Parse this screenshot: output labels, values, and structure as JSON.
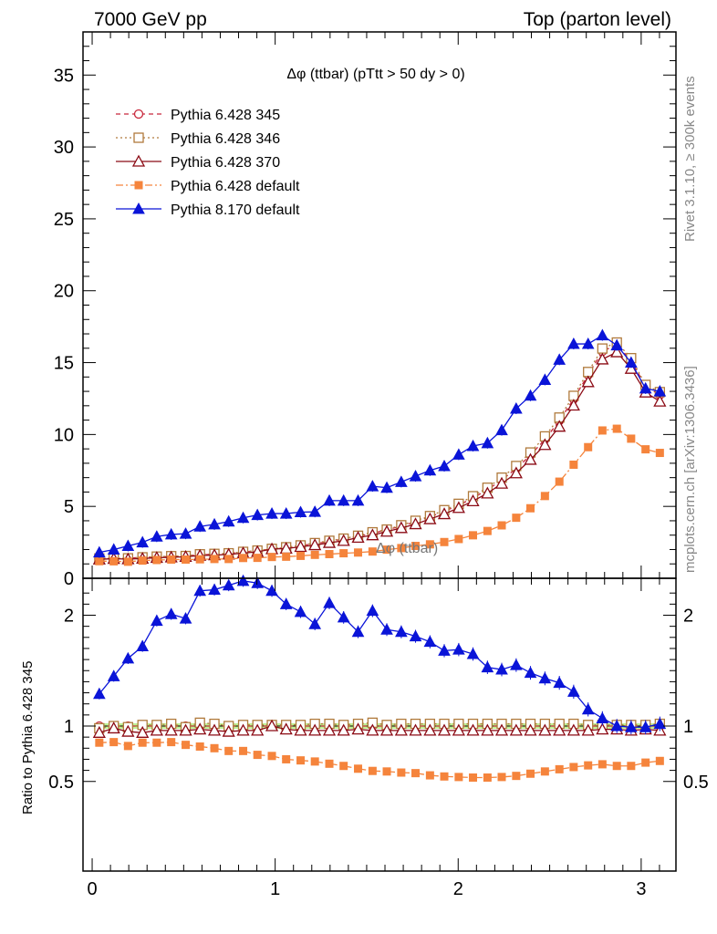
{
  "header": {
    "left": "7000 GeV pp",
    "right": "Top (parton level)",
    "rivet": "Rivet 3.1.10, ≥ 300k events",
    "mcplots": "mcplots.cern.ch [arXiv:1306.3436]"
  },
  "chart_data": {
    "type": "line",
    "title": "Δφ (ttbar) (pTtt > 50 dy > 0)",
    "ghost_label": "Δφ (ttbar)",
    "xlabel": "",
    "ylabel": "",
    "ratio_ylabel": "Ratio to Pythia 6.428 345",
    "xlim": [
      -0.05,
      3.19
    ],
    "ylim": [
      0,
      38
    ],
    "ratio_ylim": [
      0.35,
      2.25
    ],
    "x_ticks": [
      "0",
      "1",
      "2",
      "3"
    ],
    "y_ticks": [
      "0",
      "5",
      "10",
      "15",
      "20",
      "25",
      "30",
      "35"
    ],
    "ratio_ticks": [
      "0.5",
      "1",
      "2"
    ],
    "ratio_band": [
      0.975,
      1.025
    ],
    "legend_position": "top-left",
    "x": [
      0.039,
      0.118,
      0.196,
      0.275,
      0.353,
      0.432,
      0.511,
      0.589,
      0.668,
      0.746,
      0.825,
      0.903,
      0.982,
      1.06,
      1.139,
      1.217,
      1.296,
      1.374,
      1.453,
      1.532,
      1.61,
      1.689,
      1.767,
      1.846,
      1.924,
      2.003,
      2.081,
      2.16,
      2.238,
      2.317,
      2.395,
      2.474,
      2.553,
      2.631,
      2.71,
      2.788,
      2.867,
      2.945,
      3.024,
      3.102
    ],
    "series": [
      {
        "name": "Pythia 6.428 345",
        "color": "#c8283c",
        "marker": "circle-open",
        "dash": "5,4",
        "values": [
          1.4,
          1.38,
          1.4,
          1.45,
          1.49,
          1.52,
          1.57,
          1.62,
          1.68,
          1.74,
          1.82,
          1.92,
          2.03,
          2.14,
          2.27,
          2.41,
          2.56,
          2.73,
          2.92,
          3.13,
          3.37,
          3.63,
          3.93,
          4.27,
          4.65,
          5.09,
          5.58,
          6.16,
          6.84,
          7.63,
          8.56,
          9.66,
          10.96,
          12.47,
          14.15,
          15.78,
          16.25,
          15.15,
          13.35,
          12.75
        ],
        "ratio": [
          1.0,
          1.0,
          1.0,
          1.0,
          1.0,
          1.0,
          1.0,
          1.0,
          1.0,
          1.0,
          1.0,
          1.0,
          1.0,
          1.0,
          1.0,
          1.0,
          1.0,
          1.0,
          1.0,
          1.0,
          1.0,
          1.0,
          1.0,
          1.0,
          1.0,
          1.0,
          1.0,
          1.0,
          1.0,
          1.0,
          1.0,
          1.0,
          1.0,
          1.0,
          1.0,
          1.0,
          1.0,
          1.0,
          1.0,
          1.0
        ]
      },
      {
        "name": "Pythia 6.428 346",
        "color": "#b07a3c",
        "marker": "square-open",
        "dash": "2,3",
        "values": [
          1.38,
          1.38,
          1.39,
          1.46,
          1.51,
          1.54,
          1.55,
          1.67,
          1.7,
          1.74,
          1.84,
          1.93,
          2.05,
          2.16,
          2.29,
          2.45,
          2.61,
          2.76,
          2.96,
          3.2,
          3.39,
          3.69,
          4.0,
          4.33,
          4.74,
          5.18,
          5.71,
          6.3,
          7.0,
          7.81,
          8.75,
          9.87,
          11.18,
          12.69,
          14.35,
          15.98,
          16.4,
          15.31,
          13.45,
          12.95
        ],
        "ratio": [
          0.98,
          1.0,
          0.99,
          1.01,
          1.01,
          1.02,
          0.99,
          1.03,
          1.02,
          1.0,
          1.01,
          1.01,
          1.01,
          1.01,
          1.01,
          1.02,
          1.02,
          1.01,
          1.02,
          1.03,
          1.01,
          1.02,
          1.02,
          1.02,
          1.02,
          1.02,
          1.02,
          1.02,
          1.02,
          1.02,
          1.02,
          1.02,
          1.02,
          1.02,
          1.01,
          1.01,
          1.01,
          1.01,
          1.01,
          1.02
        ]
      },
      {
        "name": "Pythia 6.428 370",
        "color": "#8b0a14",
        "marker": "triangle-open",
        "dash": "",
        "values": [
          1.32,
          1.36,
          1.33,
          1.37,
          1.43,
          1.46,
          1.5,
          1.58,
          1.61,
          1.66,
          1.75,
          1.84,
          2.03,
          2.07,
          2.19,
          2.31,
          2.47,
          2.61,
          2.83,
          3.0,
          3.25,
          3.5,
          3.77,
          4.12,
          4.47,
          4.9,
          5.37,
          5.91,
          6.59,
          7.31,
          8.25,
          9.28,
          10.55,
          12.02,
          13.65,
          15.23,
          15.73,
          14.58,
          12.93,
          12.3
        ],
        "ratio": [
          0.94,
          0.98,
          0.95,
          0.94,
          0.96,
          0.96,
          0.96,
          0.97,
          0.96,
          0.95,
          0.96,
          0.96,
          1.0,
          0.97,
          0.96,
          0.96,
          0.96,
          0.96,
          0.97,
          0.96,
          0.96,
          0.96,
          0.96,
          0.96,
          0.96,
          0.96,
          0.96,
          0.96,
          0.96,
          0.96,
          0.96,
          0.96,
          0.96,
          0.96,
          0.96,
          0.97,
          0.97,
          0.96,
          0.97,
          0.96
        ]
      },
      {
        "name": "Pythia 6.428 default",
        "color": "#f5843c",
        "marker": "square-filled",
        "dash": "8,3,2,3",
        "values": [
          1.19,
          1.18,
          1.15,
          1.23,
          1.27,
          1.3,
          1.3,
          1.32,
          1.34,
          1.34,
          1.41,
          1.42,
          1.48,
          1.5,
          1.56,
          1.63,
          1.68,
          1.74,
          1.79,
          1.86,
          1.99,
          2.1,
          2.25,
          2.36,
          2.52,
          2.73,
          2.99,
          3.29,
          3.68,
          4.21,
          4.87,
          5.72,
          6.72,
          7.9,
          9.12,
          10.28,
          10.4,
          9.71,
          8.97,
          8.72
        ],
        "ratio": [
          0.85,
          0.855,
          0.82,
          0.85,
          0.85,
          0.855,
          0.83,
          0.815,
          0.8,
          0.775,
          0.775,
          0.74,
          0.73,
          0.7,
          0.69,
          0.68,
          0.66,
          0.64,
          0.615,
          0.595,
          0.59,
          0.58,
          0.575,
          0.555,
          0.545,
          0.54,
          0.535,
          0.535,
          0.54,
          0.55,
          0.57,
          0.59,
          0.61,
          0.63,
          0.645,
          0.655,
          0.64,
          0.64,
          0.67,
          0.685
        ]
      },
      {
        "name": "Pythia 8.170 default",
        "color": "#0a14d8",
        "marker": "triangle-filled",
        "dash": "",
        "values": [
          1.8,
          2.0,
          2.25,
          2.5,
          2.9,
          3.05,
          3.1,
          3.6,
          3.75,
          3.95,
          4.2,
          4.4,
          4.5,
          4.5,
          4.6,
          4.62,
          5.4,
          5.4,
          5.4,
          6.4,
          6.3,
          6.7,
          7.1,
          7.5,
          7.8,
          8.6,
          9.2,
          9.4,
          10.3,
          11.8,
          12.7,
          13.8,
          15.2,
          16.3,
          16.3,
          16.9,
          16.2,
          15.0,
          13.2,
          13.0
        ],
        "ratio": [
          1.29,
          1.45,
          1.61,
          1.72,
          1.95,
          2.01,
          1.97,
          2.22,
          2.23,
          2.27,
          2.31,
          2.29,
          2.22,
          2.1,
          2.03,
          1.92,
          2.11,
          1.98,
          1.85,
          2.04,
          1.87,
          1.85,
          1.81,
          1.76,
          1.68,
          1.69,
          1.65,
          1.53,
          1.51,
          1.55,
          1.48,
          1.43,
          1.39,
          1.31,
          1.15,
          1.07,
          1.0,
          0.99,
          0.99,
          1.02
        ]
      }
    ]
  }
}
